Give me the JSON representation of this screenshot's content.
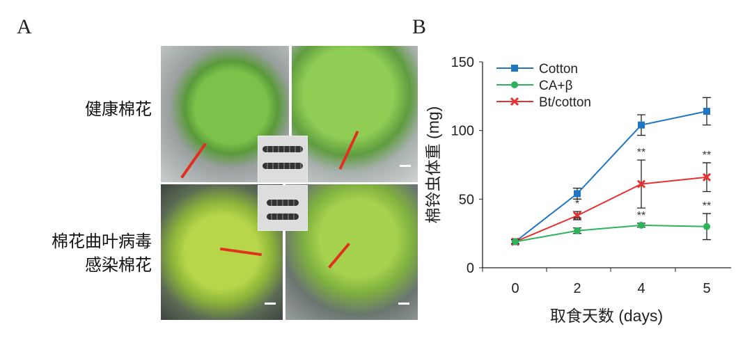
{
  "panel_a": {
    "letter": "A",
    "row_labels": [
      [
        "健康棉花"
      ],
      [
        "棉花曲叶病毒",
        "感染棉花"
      ]
    ]
  },
  "panel_b": {
    "letter": "B"
  },
  "chart_data": {
    "type": "line",
    "xlabel": "取食天数 (days)",
    "ylabel": "棉铃虫体重 (mg)",
    "categories": [
      "0",
      "2",
      "4",
      "5"
    ],
    "yticks": [
      "0",
      "50",
      "100",
      "150"
    ],
    "ylim": [
      0,
      150
    ],
    "grid": false,
    "legend_position": "top-left",
    "series": [
      {
        "name": "Cotton",
        "color": "#1f77c4",
        "marker": "square",
        "values": [
          19,
          54,
          104,
          114
        ],
        "errors": [
          1.5,
          4,
          7.5,
          10
        ],
        "annotations": [
          "",
          "",
          "",
          ""
        ]
      },
      {
        "name": "CA+β",
        "color": "#2db35a",
        "marker": "circle",
        "values": [
          19,
          27,
          31,
          30
        ],
        "errors": [
          1.5,
          2,
          1.5,
          9.5
        ],
        "annotations": [
          "",
          "**",
          "**",
          "**"
        ]
      },
      {
        "name": "Bt/cotton",
        "color": "#e8312e",
        "marker": "x",
        "values": [
          19,
          38,
          61,
          66
        ],
        "errors": [
          1.5,
          3,
          17.5,
          10.5
        ],
        "annotations": [
          "",
          "*",
          "**",
          "**"
        ]
      }
    ]
  }
}
